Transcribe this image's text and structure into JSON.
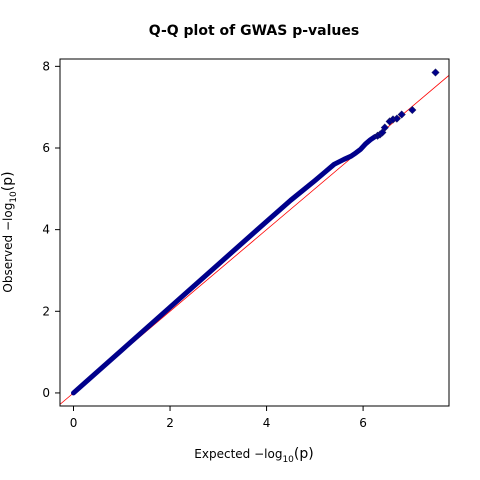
{
  "chart_data": {
    "type": "scatter",
    "title": "Q-Q plot of GWAS p-values",
    "xlabel_prefix": "Expected  −log",
    "xlabel_sub": "10",
    "xlabel_suffix": "(p)",
    "ylabel_prefix": "Observed  −log",
    "ylabel_sub": "10",
    "ylabel_suffix": "(p)",
    "xlim": [
      -0.28,
      7.78
    ],
    "ylim": [
      -0.32,
      8.18
    ],
    "x_ticks": [
      0,
      2,
      4,
      6
    ],
    "x_tick_labels": [
      "0",
      "2",
      "4",
      "6"
    ],
    "y_ticks": [
      0,
      2,
      4,
      6,
      8
    ],
    "y_tick_labels": [
      "0",
      "2",
      "4",
      "6",
      "8"
    ],
    "grid": false,
    "reference_line": {
      "slope": 1,
      "intercept": 0,
      "color": "#ff0000"
    },
    "point_color": "#00008b",
    "dense_curve": {
      "x": [
        0,
        1,
        2,
        3,
        4,
        4.5,
        5,
        5.2,
        5.4,
        5.6,
        5.75,
        5.85,
        5.95,
        6.05,
        6.15,
        6.25
      ],
      "y": [
        0,
        1.05,
        2.1,
        3.15,
        4.2,
        4.72,
        5.2,
        5.4,
        5.6,
        5.72,
        5.8,
        5.88,
        5.97,
        6.1,
        6.2,
        6.28
      ]
    },
    "points": {
      "x": [
        6.3,
        6.35,
        6.4,
        6.45,
        6.55,
        6.62,
        6.7,
        6.8,
        7.02,
        7.5
      ],
      "y": [
        6.3,
        6.33,
        6.38,
        6.5,
        6.65,
        6.7,
        6.72,
        6.82,
        6.93,
        7.85
      ]
    }
  }
}
